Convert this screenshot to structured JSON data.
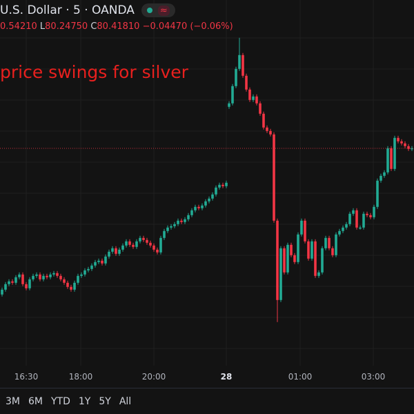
{
  "header": {
    "symbol_title": "U.S. Dollar · 5 · OANDA",
    "market_status_icon": "green-dot-icon",
    "replay_icon": "wave-icon",
    "high_value": "0.54210",
    "low_label": "L",
    "low_value": "80.24750",
    "close_label": "C",
    "close_value": "80.41810",
    "change": "−0.04470 (−0.06%)"
  },
  "headline": "price swings for silver",
  "time_axis": [
    "16:30",
    "18:00",
    "20:00",
    "28",
    "01:00",
    "03:00"
  ],
  "range_buttons": [
    "3M",
    "6M",
    "YTD",
    "1Y",
    "5Y",
    "All"
  ],
  "colors": {
    "up": "#22ab94",
    "down": "#f23645",
    "background": "#131313",
    "grid": "#1f1f1f",
    "headline": "#e8201e"
  },
  "chart_data": {
    "type": "candlestick",
    "interval": "5",
    "last_price": 80.4181,
    "price_line": "dotted",
    "grid": true,
    "sessions": [
      {
        "first_open": 78.3,
        "close": [
          78.37,
          78.45,
          78.49,
          78.47,
          78.55,
          78.59,
          78.45,
          78.39,
          78.52,
          78.57,
          78.59,
          78.52,
          78.57,
          78.55,
          78.59,
          78.61,
          78.57,
          78.52,
          78.47,
          78.41,
          78.37,
          78.47,
          78.57,
          78.59,
          78.65,
          78.67,
          78.72,
          78.77,
          78.79,
          78.75,
          78.85,
          78.92,
          78.97,
          78.89,
          78.95,
          79.01,
          79.07,
          79.02,
          78.99,
          79.07,
          79.12,
          79.09,
          79.05,
          79.01,
          78.95,
          78.91,
          79.12,
          79.22,
          79.27,
          79.29,
          79.32,
          79.37,
          79.35,
          79.39,
          79.45,
          79.52,
          79.57,
          79.55,
          79.59,
          79.65,
          79.69,
          79.75,
          79.85,
          79.89,
          79.87,
          79.92
        ]
      },
      {
        "first_open": 81.02,
        "close": [
          81.07,
          81.32,
          81.57,
          81.77,
          81.47,
          81.27,
          81.12,
          81.17,
          81.07,
          80.92,
          80.72,
          80.67,
          80.62,
          79.37,
          78.22,
          78.97,
          78.62,
          79.02,
          78.87,
          78.77,
          79.17,
          79.37,
          79.07,
          78.82,
          79.07,
          78.57,
          78.62,
          78.97,
          79.12,
          78.97,
          78.87,
          79.17,
          79.22,
          79.27,
          79.32,
          79.47,
          79.52,
          79.27,
          79.27,
          79.47,
          79.45,
          79.42,
          79.57,
          79.95,
          80.02,
          80.07,
          80.42,
          80.12,
          80.57,
          80.52,
          80.49,
          80.45,
          80.41,
          80.42
        ],
        "session_high": 82.02,
        "session_low": 77.9
      }
    ]
  }
}
